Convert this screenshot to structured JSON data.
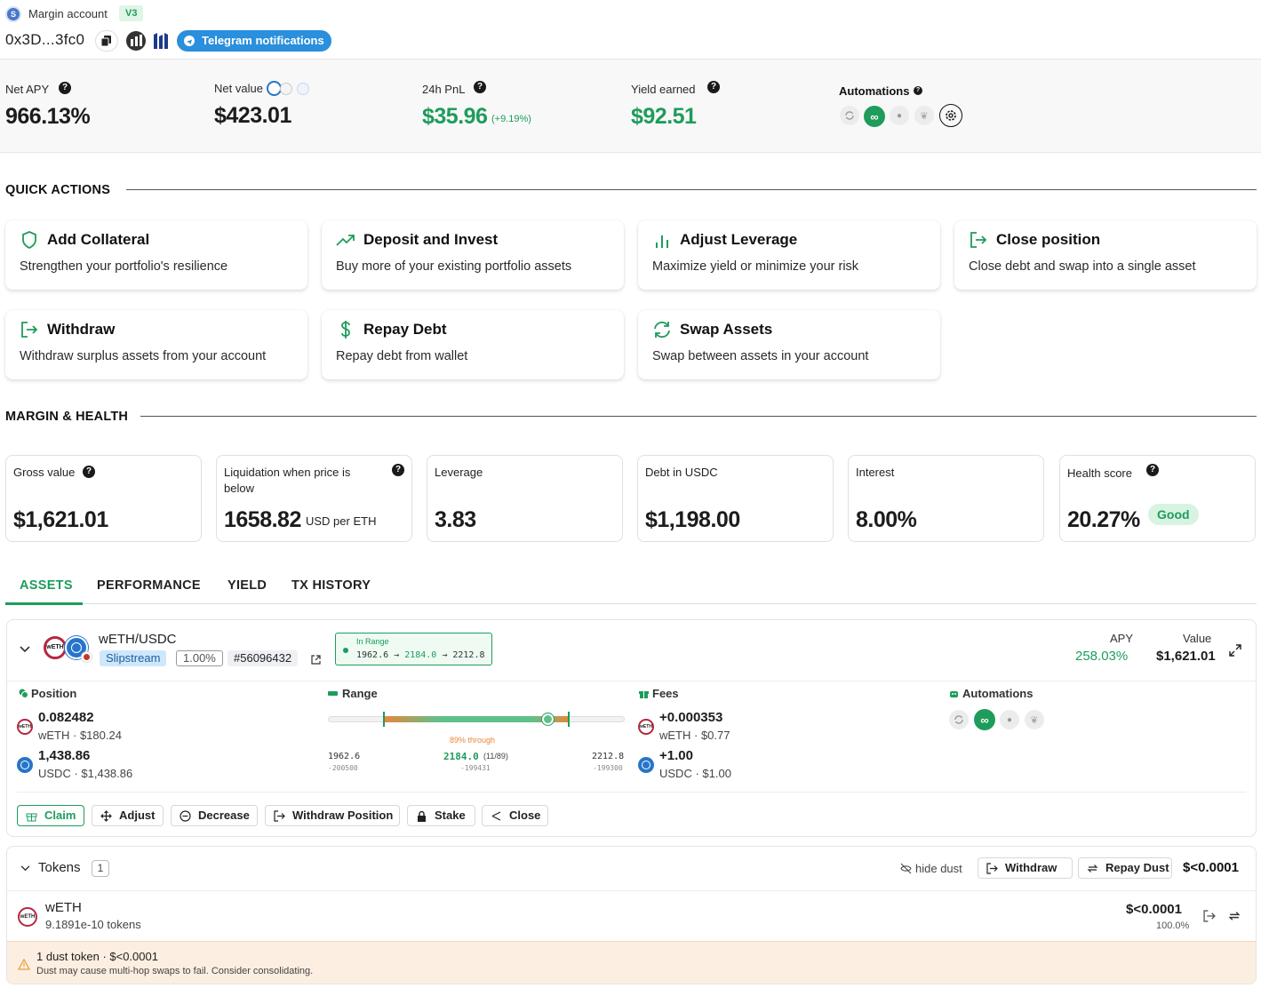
{
  "header": {
    "account_label": "Margin account",
    "version_badge": "V3",
    "address": "0x3D...3fc0",
    "telegram_label": "Telegram notifications"
  },
  "stats": {
    "net_apy_label": "Net APY",
    "net_apy_value": "966.13%",
    "net_value_label": "Net value",
    "net_value": "$423.01",
    "pnl_label": "24h PnL",
    "pnl_value": "$35.96",
    "pnl_pct": "(+9.19%)",
    "yield_label": "Yield earned",
    "yield_value": "$92.51",
    "automations_label": "Automations"
  },
  "quick_actions": {
    "title": "QUICK ACTIONS",
    "items": [
      {
        "title": "Add Collateral",
        "desc": "Strengthen your portfolio's resilience",
        "icon": "shield-icon"
      },
      {
        "title": "Deposit and Invest",
        "desc": "Buy more of your existing portfolio assets",
        "icon": "trending-up-icon"
      },
      {
        "title": "Adjust Leverage",
        "desc": "Maximize yield or minimize your risk",
        "icon": "bar-chart-icon"
      },
      {
        "title": "Close position",
        "desc": "Close debt and swap into a single asset",
        "icon": "exit-icon"
      },
      {
        "title": "Withdraw",
        "desc": "Withdraw surplus assets from your account",
        "icon": "withdraw-icon"
      },
      {
        "title": "Repay Debt",
        "desc": "Repay debt from wallet",
        "icon": "dollar-icon"
      },
      {
        "title": "Swap Assets",
        "desc": "Swap between assets in your account",
        "icon": "refresh-icon"
      }
    ]
  },
  "margin": {
    "title": "MARGIN & HEALTH",
    "gross_label": "Gross value",
    "gross_value": "$1,621.01",
    "liq_label": "Liquidation when price is below",
    "liq_value": "1658.82",
    "liq_unit": "USD per ETH",
    "lev_label": "Leverage",
    "lev_value": "3.83",
    "debt_label": "Debt in USDC",
    "debt_value": "$1,198.00",
    "interest_label": "Interest",
    "interest_value": "8.00%",
    "health_label": "Health score",
    "health_value": "20.27%",
    "health_badge": "Good"
  },
  "tabs": [
    "ASSETS",
    "PERFORMANCE",
    "YIELD",
    "TX HISTORY"
  ],
  "position": {
    "pair": "wETH/USDC",
    "protocol": "Slipstream",
    "fee_tier": "1.00%",
    "nft_id": "#56096432",
    "range_status": "In Range",
    "range_low": "1962.6",
    "range_current": "2184.0",
    "range_high": "2212.8",
    "apy_label": "APY",
    "apy_value": "258.03%",
    "value_label": "Value",
    "value_value": "$1,621.01",
    "position_label": "Position",
    "weth_amount": "0.082482",
    "weth_sub": "wETH · $180.24",
    "usdc_amount": "1,438.86",
    "usdc_sub": "USDC · $1,438.86",
    "range_label": "Range",
    "range_through": "89% through",
    "range_fill_fraction": 0.89,
    "tick_low": "-200500",
    "tick_current_extra": "(11/89)",
    "tick_current": "-199431",
    "tick_high": "-199300",
    "fees_label": "Fees",
    "fee_weth": "+0.000353",
    "fee_weth_sub": "wETH · $0.77",
    "fee_usdc": "+1.00",
    "fee_usdc_sub": "USDC · $1.00",
    "automations_label": "Automations",
    "buttons": {
      "claim": "Claim",
      "adjust": "Adjust",
      "decrease": "Decrease",
      "withdraw_position": "Withdraw Position",
      "stake": "Stake",
      "close": "Close"
    }
  },
  "tokens": {
    "title": "Tokens",
    "count": "1",
    "hide_dust": "hide dust",
    "withdraw": "Withdraw",
    "repay_dust": "Repay Dust",
    "total": "$<0.0001",
    "rows": [
      {
        "symbol": "wETH",
        "amount": "9.1891e-10 tokens",
        "value": "$<0.0001",
        "pct": "100.0%"
      }
    ],
    "dust_title": "1 dust token · $<0.0001",
    "dust_desc": "Dust may cause multi-hop swaps to fail. Consider consolidating."
  },
  "colors": {
    "accent_green": "#1e9c5b",
    "telegram_blue": "#2a8fdc",
    "range_orange": "#e8873a"
  }
}
